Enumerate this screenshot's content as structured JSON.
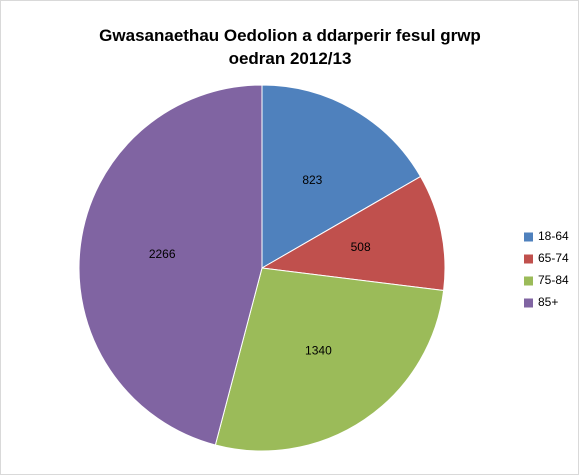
{
  "chart_data": {
    "type": "pie",
    "title": "Gwasanaethau Oedolion a ddarperir fesul grwp oedran 2012/13",
    "categories": [
      "18-64",
      "65-74",
      "75-84",
      "85+"
    ],
    "values": [
      823,
      508,
      1340,
      2266
    ],
    "colors": [
      "#4f81bd",
      "#c0504d",
      "#9bbb59",
      "#8064a2"
    ],
    "legend": "right"
  }
}
